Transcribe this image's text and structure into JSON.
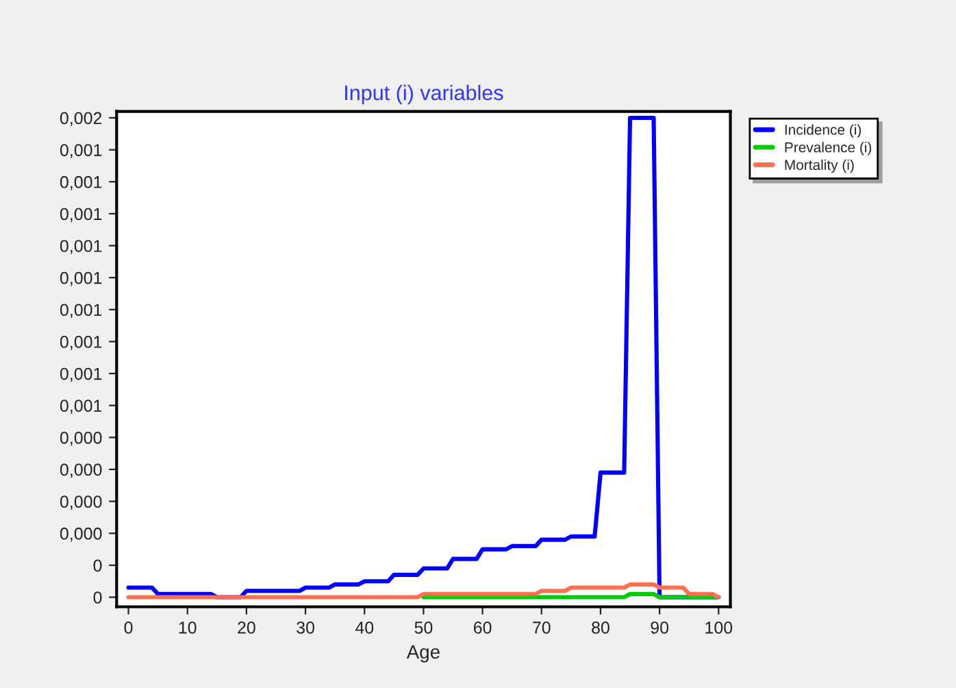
{
  "chart_data": {
    "type": "line",
    "title": "Input (i) variables",
    "xlabel": "Age",
    "series": [
      {
        "name": "Incidence (i)",
        "color": "#0000ff",
        "x": [
          0,
          4,
          5,
          14,
          15,
          19,
          20,
          29,
          30,
          34,
          35,
          39,
          40,
          44,
          45,
          49,
          50,
          54,
          55,
          59,
          60,
          64,
          65,
          69,
          70,
          74,
          75,
          79,
          80,
          84,
          85,
          89,
          90,
          100
        ],
        "values": [
          3e-05,
          3e-05,
          1e-05,
          1e-05,
          0,
          0,
          2e-05,
          2e-05,
          3e-05,
          3e-05,
          4e-05,
          4e-05,
          5e-05,
          5e-05,
          7e-05,
          7e-05,
          9e-05,
          9e-05,
          0.00012,
          0.00012,
          0.00015,
          0.00015,
          0.00016,
          0.00016,
          0.00018,
          0.00018,
          0.00019,
          0.00019,
          0.00039,
          0.00039,
          0.0015,
          0.0015,
          0,
          0
        ]
      },
      {
        "name": "Prevalence (i)",
        "color": "#00cc00",
        "x": [
          50,
          84,
          85,
          89,
          90,
          100
        ],
        "values": [
          0,
          0,
          1e-05,
          1e-05,
          0,
          0
        ]
      },
      {
        "name": "Mortality (i)",
        "color": "#ff7050",
        "x": [
          0,
          49,
          50,
          64,
          65,
          69,
          70,
          74,
          75,
          79,
          80,
          84,
          85,
          89,
          90,
          94,
          95,
          99,
          100
        ],
        "values": [
          0,
          0,
          1e-05,
          1e-05,
          1e-05,
          1e-05,
          2e-05,
          2e-05,
          3e-05,
          3e-05,
          3e-05,
          3e-05,
          4e-05,
          4e-05,
          3e-05,
          3e-05,
          1e-05,
          1e-05,
          0
        ]
      }
    ],
    "xlim": [
      -2,
      102
    ],
    "xticks": [
      0,
      10,
      20,
      30,
      40,
      50,
      60,
      70,
      80,
      90,
      100
    ],
    "ylim": [
      -3e-05,
      0.00152
    ],
    "yticks": [
      {
        "value": 0,
        "label": "0"
      },
      {
        "value": 0.0001,
        "label": "0"
      },
      {
        "value": 0.0002,
        "label": "0,000"
      },
      {
        "value": 0.0003,
        "label": "0,000"
      },
      {
        "value": 0.0004,
        "label": "0,000"
      },
      {
        "value": 0.0005,
        "label": "0,000"
      },
      {
        "value": 0.0006,
        "label": "0,001"
      },
      {
        "value": 0.0007,
        "label": "0,001"
      },
      {
        "value": 0.0008,
        "label": "0,001"
      },
      {
        "value": 0.0009,
        "label": "0,001"
      },
      {
        "value": 0.001,
        "label": "0,001"
      },
      {
        "value": 0.0011,
        "label": "0,001"
      },
      {
        "value": 0.0012,
        "label": "0,001"
      },
      {
        "value": 0.0013,
        "label": "0,001"
      },
      {
        "value": 0.0014,
        "label": "0,001"
      },
      {
        "value": 0.0015,
        "label": "0,002"
      }
    ],
    "grid": false,
    "legend": "top right",
    "marker": "none",
    "line_style": "solid"
  }
}
